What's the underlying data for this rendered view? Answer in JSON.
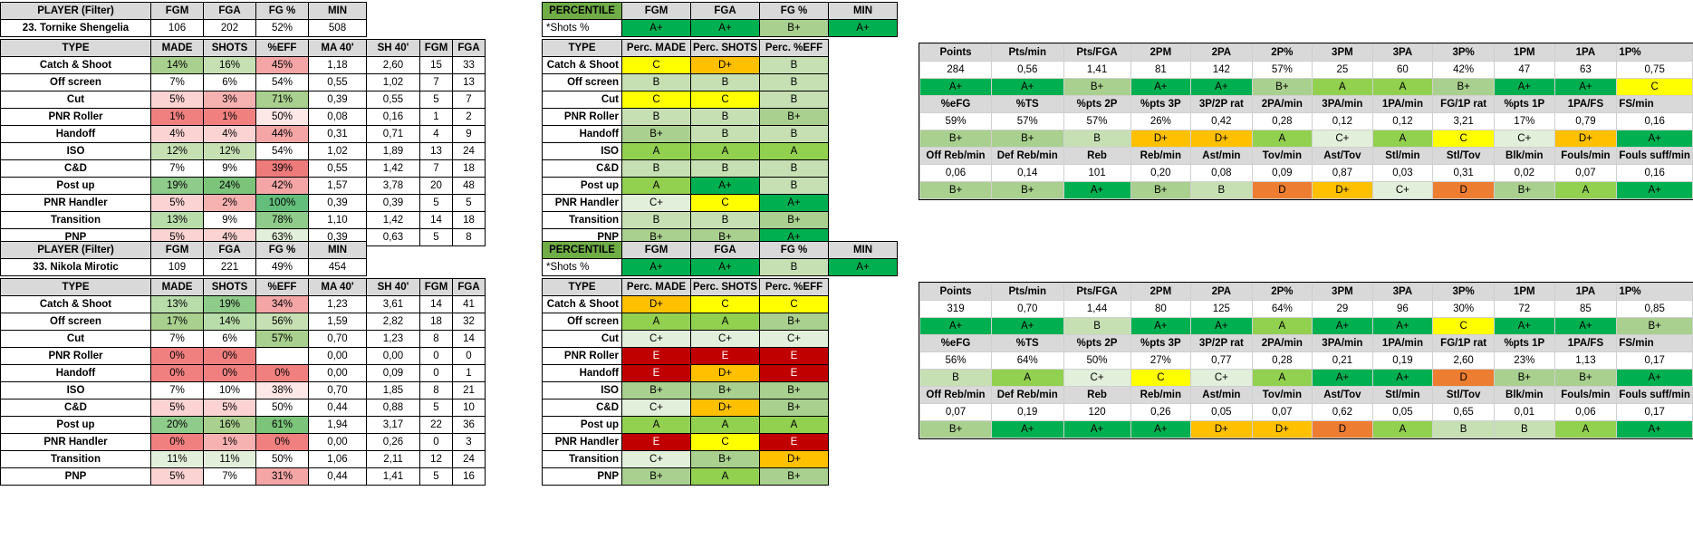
{
  "colors": {
    "A+": "#00b050",
    "A": "#92d050",
    "B+": "#a9d08e",
    "B": "#c6e0b4",
    "C+": "#e2efda",
    "C": "#ffff00",
    "D+": "#ffc000",
    "D": "#ed7d31",
    "E": "#c00000",
    "header": "#d9d9d9",
    "percentileHeader": "#70ad47"
  },
  "players": [
    {
      "summary": {
        "headers": [
          "PLAYER (Filter)",
          "FGM",
          "FGA",
          "FG %",
          "MIN"
        ],
        "name": "23. Tornike Shengelia",
        "fgm": "106",
        "fga": "202",
        "fgp": "52%",
        "min": "508"
      },
      "percSummary": {
        "headers": [
          "PERCENTILE",
          "FGM",
          "FGA",
          "FG %",
          "MIN"
        ],
        "note": "*Shots %",
        "grades": [
          "A+",
          "A+",
          "B+",
          "A+"
        ]
      },
      "typeHeaders": [
        "TYPE",
        "MADE",
        "SHOTS",
        "%EFF",
        "MA 40'",
        "SH 40'",
        "FGM",
        "FGA"
      ],
      "rows": [
        {
          "type": "Catch & Shoot",
          "made": "14%",
          "shots": "16%",
          "eff": "45%",
          "ma40": "1,18",
          "sh40": "2,60",
          "fgm": "15",
          "fga": "33",
          "c": [
            "#a9d08e",
            "#c6e0b4",
            "#f4a6a6"
          ]
        },
        {
          "type": "Off screen",
          "made": "7%",
          "shots": "6%",
          "eff": "54%",
          "ma40": "0,55",
          "sh40": "1,02",
          "fgm": "7",
          "fga": "13",
          "c": [
            "#fff",
            "#fff",
            "#fff"
          ]
        },
        {
          "type": "Cut",
          "made": "5%",
          "shots": "3%",
          "eff": "71%",
          "ma40": "0,39",
          "sh40": "0,55",
          "fgm": "5",
          "fga": "7",
          "c": [
            "#fbd3d3",
            "#f6b1b1",
            "#a9d08e"
          ]
        },
        {
          "type": "PNR Roller",
          "made": "1%",
          "shots": "1%",
          "eff": "50%",
          "ma40": "0,08",
          "sh40": "0,16",
          "fgm": "1",
          "fga": "2",
          "c": [
            "#f08080",
            "#f08080",
            "#fde7e7"
          ]
        },
        {
          "type": "Handoff",
          "made": "4%",
          "shots": "4%",
          "eff": "44%",
          "ma40": "0,31",
          "sh40": "0,71",
          "fgm": "4",
          "fga": "9",
          "c": [
            "#fbd3d3",
            "#fbd3d3",
            "#f4a6a6"
          ]
        },
        {
          "type": "ISO",
          "made": "12%",
          "shots": "12%",
          "eff": "54%",
          "ma40": "1,02",
          "sh40": "1,89",
          "fgm": "13",
          "fga": "24",
          "c": [
            "#c6e0b4",
            "#c6e0b4",
            "#fff"
          ]
        },
        {
          "type": "C&D",
          "made": "7%",
          "shots": "9%",
          "eff": "39%",
          "ma40": "0,55",
          "sh40": "1,42",
          "fgm": "7",
          "fga": "18",
          "c": [
            "#fff",
            "#fff",
            "#ee7b7b"
          ]
        },
        {
          "type": "Post up",
          "made": "19%",
          "shots": "24%",
          "eff": "42%",
          "ma40": "1,57",
          "sh40": "3,78",
          "fgm": "20",
          "fga": "48",
          "c": [
            "#8fcb8a",
            "#7cc47a",
            "#f4a6a6"
          ]
        },
        {
          "type": "PNR Handler",
          "made": "5%",
          "shots": "2%",
          "eff": "100%",
          "ma40": "0,39",
          "sh40": "0,39",
          "fgm": "5",
          "fga": "5",
          "c": [
            "#fbd3d3",
            "#f6b1b1",
            "#63be7b"
          ]
        },
        {
          "type": "Transition",
          "made": "13%",
          "shots": "9%",
          "eff": "78%",
          "ma40": "1,10",
          "sh40": "1,42",
          "fgm": "14",
          "fga": "18",
          "c": [
            "#b8dcaa",
            "#fff",
            "#8fcb8a"
          ]
        },
        {
          "type": "PNP",
          "made": "5%",
          "shots": "4%",
          "eff": "63%",
          "ma40": "0,39",
          "sh40": "0,63",
          "fgm": "5",
          "fga": "8",
          "c": [
            "#fbd3d3",
            "#fbd3d3",
            "#e2efda"
          ]
        }
      ],
      "percHeaders": [
        "TYPE",
        "Perc. MADE",
        "Perc. SHOTS",
        "Perc. %EFF"
      ],
      "percRows": [
        {
          "type": "Catch & Shoot",
          "g": [
            "C",
            "D+",
            "B"
          ]
        },
        {
          "type": "Off screen",
          "g": [
            "B",
            "B",
            "B"
          ]
        },
        {
          "type": "Cut",
          "g": [
            "C",
            "C",
            "B"
          ]
        },
        {
          "type": "PNR Roller",
          "g": [
            "B",
            "B",
            "B+"
          ]
        },
        {
          "type": "Handoff",
          "g": [
            "B+",
            "B",
            "B"
          ]
        },
        {
          "type": "ISO",
          "g": [
            "A",
            "A",
            "A"
          ]
        },
        {
          "type": "C&D",
          "g": [
            "B",
            "B",
            "B"
          ]
        },
        {
          "type": "Post up",
          "g": [
            "A",
            "A+",
            "B"
          ]
        },
        {
          "type": "PNR Handler",
          "g": [
            "C+",
            "C",
            "A+"
          ]
        },
        {
          "type": "Transition",
          "g": [
            "B",
            "B",
            "B+"
          ]
        },
        {
          "type": "PNP",
          "g": [
            "B+",
            "B+",
            "A+"
          ]
        }
      ],
      "stats": [
        {
          "h": [
            "Points",
            "Pts/min",
            "Pts/FGA",
            "2PM",
            "2PA",
            "2P%",
            "3PM",
            "3PA",
            "3P%",
            "1PM",
            "1PA",
            "1P%"
          ],
          "v": [
            "284",
            "0,56",
            "1,41",
            "81",
            "142",
            "57%",
            "25",
            "60",
            "42%",
            "47",
            "63",
            "0,75"
          ],
          "g": [
            "A+",
            "A+",
            "B+",
            "A+",
            "A+",
            "B+",
            "A",
            "A",
            "B+",
            "A+",
            "A+",
            "C"
          ]
        },
        {
          "h": [
            "%eFG",
            "%TS",
            "%pts 2P",
            "%pts 3P",
            "3P/2P rat",
            "2PA/min",
            "3PA/min",
            "1PA/min",
            "FG/1P rat",
            "%pts 1P",
            "1PA/FS",
            "FS/min"
          ],
          "v": [
            "59%",
            "57%",
            "57%",
            "26%",
            "0,42",
            "0,28",
            "0,12",
            "0,12",
            "3,21",
            "17%",
            "0,79",
            "0,16"
          ],
          "g": [
            "B+",
            "B+",
            "B",
            "D+",
            "D+",
            "A",
            "C+",
            "A",
            "C",
            "C+",
            "D+",
            "A+"
          ]
        },
        {
          "h": [
            "Off Reb/min",
            "Def Reb/min",
            "Reb",
            "Reb/min",
            "Ast/min",
            "Tov/min",
            "Ast/Tov",
            "Stl/min",
            "Stl/Tov",
            "Blk/min",
            "Fouls/min",
            "Fouls suff/min"
          ],
          "v": [
            "0,06",
            "0,14",
            "101",
            "0,20",
            "0,08",
            "0,09",
            "0,87",
            "0,03",
            "0,31",
            "0,02",
            "0,07",
            "0,16"
          ],
          "g": [
            "B+",
            "B+",
            "A+",
            "B+",
            "B",
            "D",
            "D+",
            "C+",
            "D",
            "B+",
            "A",
            "A+"
          ]
        }
      ]
    },
    {
      "summary": {
        "headers": [
          "PLAYER (Filter)",
          "FGM",
          "FGA",
          "FG %",
          "MIN"
        ],
        "name": "33. Nikola Mirotic",
        "fgm": "109",
        "fga": "221",
        "fgp": "49%",
        "min": "454"
      },
      "percSummary": {
        "headers": [
          "PERCENTILE",
          "FGM",
          "FGA",
          "FG %",
          "MIN"
        ],
        "note": "*Shots %",
        "grades": [
          "A+",
          "A+",
          "B",
          "A+"
        ]
      },
      "typeHeaders": [
        "TYPE",
        "MADE",
        "SHOTS",
        "%EFF",
        "MA 40'",
        "SH 40'",
        "FGM",
        "FGA"
      ],
      "rows": [
        {
          "type": "Catch & Shoot",
          "made": "13%",
          "shots": "19%",
          "eff": "34%",
          "ma40": "1,23",
          "sh40": "3,61",
          "fgm": "14",
          "fga": "41",
          "c": [
            "#b8dcaa",
            "#8fcb8a",
            "#f4a6a6"
          ]
        },
        {
          "type": "Off screen",
          "made": "17%",
          "shots": "14%",
          "eff": "56%",
          "ma40": "1,59",
          "sh40": "2,82",
          "fgm": "18",
          "fga": "32",
          "c": [
            "#a9d08e",
            "#b8dcaa",
            "#c6e0b4"
          ]
        },
        {
          "type": "Cut",
          "made": "7%",
          "shots": "6%",
          "eff": "57%",
          "ma40": "0,70",
          "sh40": "1,23",
          "fgm": "8",
          "fga": "14",
          "c": [
            "#fff",
            "#fff",
            "#a9d08e"
          ]
        },
        {
          "type": "PNR Roller",
          "made": "0%",
          "shots": "0%",
          "eff": "",
          "ma40": "0,00",
          "sh40": "0,00",
          "fgm": "0",
          "fga": "0",
          "c": [
            "#f08080",
            "#f08080",
            "#fff"
          ]
        },
        {
          "type": "Handoff",
          "made": "0%",
          "shots": "0%",
          "eff": "0%",
          "ma40": "0,00",
          "sh40": "0,09",
          "fgm": "0",
          "fga": "1",
          "c": [
            "#f08080",
            "#f08080",
            "#f08080"
          ]
        },
        {
          "type": "ISO",
          "made": "7%",
          "shots": "10%",
          "eff": "38%",
          "ma40": "0,70",
          "sh40": "1,85",
          "fgm": "8",
          "fga": "21",
          "c": [
            "#fff",
            "#fff",
            "#fde7e7"
          ]
        },
        {
          "type": "C&D",
          "made": "5%",
          "shots": "5%",
          "eff": "50%",
          "ma40": "0,44",
          "sh40": "0,88",
          "fgm": "5",
          "fga": "10",
          "c": [
            "#fbd3d3",
            "#fbd3d3",
            "#fff"
          ]
        },
        {
          "type": "Post up",
          "made": "20%",
          "shots": "16%",
          "eff": "61%",
          "ma40": "1,94",
          "sh40": "3,17",
          "fgm": "22",
          "fga": "36",
          "c": [
            "#8fcb8a",
            "#a9d08e",
            "#7cc47a"
          ]
        },
        {
          "type": "PNR Handler",
          "made": "0%",
          "shots": "1%",
          "eff": "0%",
          "ma40": "0,00",
          "sh40": "0,26",
          "fgm": "0",
          "fga": "3",
          "c": [
            "#f08080",
            "#f6b1b1",
            "#f08080"
          ]
        },
        {
          "type": "Transition",
          "made": "11%",
          "shots": "11%",
          "eff": "50%",
          "ma40": "1,06",
          "sh40": "2,11",
          "fgm": "12",
          "fga": "24",
          "c": [
            "#e2efda",
            "#e2efda",
            "#fff"
          ]
        },
        {
          "type": "PNP",
          "made": "5%",
          "shots": "7%",
          "eff": "31%",
          "ma40": "0,44",
          "sh40": "1,41",
          "fgm": "5",
          "fga": "16",
          "c": [
            "#fbd3d3",
            "#fff",
            "#f4a6a6"
          ]
        }
      ],
      "percHeaders": [
        "TYPE",
        "Perc. MADE",
        "Perc. SHOTS",
        "Perc. %EFF"
      ],
      "percRows": [
        {
          "type": "Catch & Shoot",
          "g": [
            "D+",
            "C",
            "C"
          ]
        },
        {
          "type": "Off screen",
          "g": [
            "A",
            "A",
            "B+"
          ]
        },
        {
          "type": "Cut",
          "g": [
            "C+",
            "C+",
            "C+"
          ]
        },
        {
          "type": "PNR Roller",
          "g": [
            "E",
            "E",
            "E"
          ]
        },
        {
          "type": "Handoff",
          "g": [
            "E",
            "D+",
            "E"
          ]
        },
        {
          "type": "ISO",
          "g": [
            "B+",
            "B+",
            "B+"
          ]
        },
        {
          "type": "C&D",
          "g": [
            "C+",
            "D+",
            "B+"
          ]
        },
        {
          "type": "Post up",
          "g": [
            "A",
            "A",
            "A"
          ]
        },
        {
          "type": "PNR Handler",
          "g": [
            "E",
            "C",
            "E"
          ]
        },
        {
          "type": "Transition",
          "g": [
            "C+",
            "B+",
            "D+"
          ]
        },
        {
          "type": "PNP",
          "g": [
            "B+",
            "A",
            "B+"
          ]
        }
      ],
      "stats": [
        {
          "h": [
            "Points",
            "Pts/min",
            "Pts/FGA",
            "2PM",
            "2PA",
            "2P%",
            "3PM",
            "3PA",
            "3P%",
            "1PM",
            "1PA",
            "1P%"
          ],
          "v": [
            "319",
            "0,70",
            "1,44",
            "80",
            "125",
            "64%",
            "29",
            "96",
            "30%",
            "72",
            "85",
            "0,85"
          ],
          "g": [
            "A+",
            "A+",
            "B",
            "A+",
            "A+",
            "A",
            "A+",
            "A+",
            "C",
            "A+",
            "A+",
            "B+"
          ]
        },
        {
          "h": [
            "%eFG",
            "%TS",
            "%pts 2P",
            "%pts 3P",
            "3P/2P rat",
            "2PA/min",
            "3PA/min",
            "1PA/min",
            "FG/1P rat",
            "%pts 1P",
            "1PA/FS",
            "FS/min"
          ],
          "v": [
            "56%",
            "64%",
            "50%",
            "27%",
            "0,77",
            "0,28",
            "0,21",
            "0,19",
            "2,60",
            "23%",
            "1,13",
            "0,17"
          ],
          "g": [
            "B",
            "A",
            "C+",
            "C",
            "C+",
            "A",
            "A+",
            "A+",
            "D",
            "B+",
            "B+",
            "A+"
          ]
        },
        {
          "h": [
            "Off Reb/min",
            "Def Reb/min",
            "Reb",
            "Reb/min",
            "Ast/min",
            "Tov/min",
            "Ast/Tov",
            "Stl/min",
            "Stl/Tov",
            "Blk/min",
            "Fouls/min",
            "Fouls suff/min"
          ],
          "v": [
            "0,07",
            "0,19",
            "120",
            "0,26",
            "0,05",
            "0,07",
            "0,62",
            "0,05",
            "0,65",
            "0,01",
            "0,06",
            "0,17"
          ],
          "g": [
            "B+",
            "A+",
            "A+",
            "A+",
            "D+",
            "D+",
            "D",
            "A",
            "B",
            "B",
            "A",
            "A+"
          ]
        }
      ]
    }
  ]
}
